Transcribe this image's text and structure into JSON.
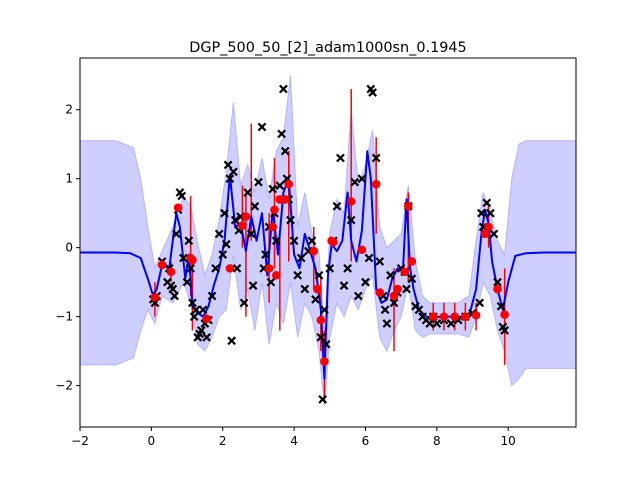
{
  "chart_data": {
    "type": "line",
    "title": "DGP_500_50_[2]_adam1000sn_0.1945",
    "xlabel": "",
    "ylabel": "",
    "xlim": [
      -2,
      11.9
    ],
    "ylim": [
      -2.6,
      2.75
    ],
    "xticks": [
      -2,
      0,
      2,
      4,
      6,
      8,
      10
    ],
    "yticks": [
      -2,
      -1,
      0,
      1,
      2
    ],
    "grid": false,
    "legend": "none",
    "colors": {
      "mean": "#0000ff",
      "band": "#ccccff",
      "band_edge": "#b3b3ff",
      "observations": "#000000",
      "predictions": "#ff0000",
      "error_bars": "#ff0000"
    },
    "mean_curve": {
      "x": [
        -2,
        -1.5,
        -1.0,
        -0.6,
        -0.3,
        -0.1,
        0.05,
        0.15,
        0.3,
        0.5,
        0.7,
        0.8,
        0.95,
        1.05,
        1.15,
        1.3,
        1.45,
        1.6,
        1.75,
        1.9,
        2.05,
        2.2,
        2.35,
        2.5,
        2.65,
        2.8,
        2.95,
        3.1,
        3.25,
        3.4,
        3.55,
        3.7,
        3.85,
        4.0,
        4.15,
        4.3,
        4.45,
        4.6,
        4.75,
        4.85,
        4.95,
        5.05,
        5.2,
        5.35,
        5.5,
        5.6,
        5.75,
        5.9,
        6.05,
        6.15,
        6.3,
        6.45,
        6.6,
        6.75,
        6.9,
        7.05,
        7.15,
        7.25,
        7.35,
        7.5,
        7.7,
        7.9,
        8.1,
        8.3,
        8.5,
        8.7,
        8.9,
        9.1,
        9.25,
        9.35,
        9.45,
        9.55,
        9.7,
        9.85,
        10.0,
        10.2,
        10.5,
        11.0,
        11.9
      ],
      "y": [
        -0.07,
        -0.07,
        -0.07,
        -0.08,
        -0.15,
        -0.45,
        -0.7,
        -0.6,
        -0.25,
        -0.3,
        0.5,
        0.3,
        -0.45,
        -0.1,
        -0.85,
        -0.95,
        -1.0,
        -0.85,
        -0.55,
        -0.3,
        0.1,
        1.05,
        0.3,
        0.35,
        -0.05,
        0.45,
        0.1,
        0.5,
        -0.4,
        0.55,
        -0.1,
        0.8,
        1.0,
        -0.1,
        -0.3,
        0.2,
        -0.05,
        -0.3,
        -0.9,
        -1.9,
        -0.4,
        0.05,
        -0.05,
        0.1,
        0.8,
        0.1,
        -0.2,
        0.25,
        1.4,
        1.0,
        -0.6,
        -0.8,
        -0.75,
        -0.45,
        -0.3,
        -0.35,
        0.7,
        -0.3,
        -0.6,
        -0.9,
        -1.0,
        -1.02,
        -1.0,
        -1.0,
        -1.0,
        -1.0,
        -1.0,
        -0.6,
        0.2,
        0.55,
        0.35,
        -0.2,
        -0.6,
        -0.9,
        -0.5,
        -0.12,
        -0.08,
        -0.07,
        -0.07
      ]
    },
    "band_upper": {
      "x": [
        -2,
        -1.0,
        -0.5,
        -0.3,
        -0.1,
        0.1,
        0.3,
        0.6,
        0.9,
        1.1,
        1.3,
        1.5,
        1.7,
        1.9,
        2.1,
        2.3,
        2.5,
        2.7,
        2.9,
        3.1,
        3.3,
        3.5,
        3.7,
        3.9,
        4.1,
        4.3,
        4.5,
        4.7,
        4.85,
        5.0,
        5.2,
        5.4,
        5.6,
        5.8,
        6.0,
        6.2,
        6.4,
        6.6,
        6.8,
        7.0,
        7.2,
        7.4,
        7.6,
        7.8,
        8.0,
        8.3,
        8.6,
        8.9,
        9.1,
        9.3,
        9.5,
        9.7,
        9.9,
        10.1,
        10.3,
        10.5,
        11.0,
        11.9
      ],
      "y": [
        1.55,
        1.55,
        1.45,
        1.0,
        0.3,
        -0.3,
        -0.05,
        0.3,
        0.75,
        0.6,
        0.05,
        -0.4,
        -0.1,
        0.4,
        1.1,
        2.1,
        0.9,
        1.2,
        0.8,
        1.3,
        0.7,
        1.4,
        1.6,
        2.5,
        0.3,
        0.8,
        0.2,
        -0.1,
        -1.2,
        0.2,
        0.7,
        0.5,
        2.0,
        0.9,
        1.2,
        1.7,
        0.3,
        0.0,
        0.1,
        0.2,
        0.9,
        -0.2,
        -0.7,
        -0.8,
        -0.8,
        -0.8,
        -0.8,
        -0.7,
        0.1,
        0.8,
        0.5,
        0.1,
        -0.1,
        1.0,
        1.5,
        1.55,
        1.55,
        1.55
      ]
    },
    "band_lower": {
      "x": [
        -2,
        -1.0,
        -0.5,
        -0.3,
        -0.1,
        0.1,
        0.3,
        0.6,
        0.9,
        1.1,
        1.3,
        1.5,
        1.7,
        1.9,
        2.1,
        2.3,
        2.5,
        2.7,
        2.9,
        3.1,
        3.3,
        3.5,
        3.7,
        3.9,
        4.1,
        4.3,
        4.5,
        4.7,
        4.85,
        5.0,
        5.2,
        5.4,
        5.6,
        5.8,
        6.0,
        6.2,
        6.4,
        6.6,
        6.8,
        7.0,
        7.2,
        7.4,
        7.6,
        7.8,
        8.0,
        8.3,
        8.6,
        8.9,
        9.1,
        9.3,
        9.5,
        9.7,
        9.9,
        10.1,
        10.3,
        10.5,
        11.0,
        11.9
      ],
      "y": [
        -1.7,
        -1.7,
        -1.6,
        -1.2,
        -0.9,
        -1.1,
        -0.7,
        -0.8,
        -0.5,
        -0.8,
        -1.4,
        -1.5,
        -1.3,
        -1.0,
        -0.9,
        -0.1,
        -0.9,
        -0.6,
        -1.2,
        -0.5,
        -1.4,
        -0.8,
        -1.1,
        -0.5,
        -1.3,
        -0.8,
        -1.0,
        -1.5,
        -2.3,
        -1.3,
        -0.8,
        -1.0,
        -0.7,
        -0.9,
        -0.6,
        -0.4,
        -1.3,
        -1.5,
        -1.2,
        -1.0,
        -0.5,
        -1.2,
        -1.3,
        -1.25,
        -1.25,
        -1.25,
        -1.25,
        -1.3,
        -1.0,
        -0.5,
        -0.7,
        -1.2,
        -1.5,
        -2.0,
        -1.9,
        -1.75,
        -1.75,
        -1.75
      ]
    },
    "observations": {
      "x": [
        0.05,
        0.1,
        0.15,
        0.3,
        0.45,
        0.5,
        0.55,
        0.6,
        0.65,
        0.7,
        0.75,
        0.8,
        0.85,
        0.9,
        1.0,
        1.05,
        1.1,
        1.15,
        1.2,
        1.25,
        1.3,
        1.35,
        1.4,
        1.45,
        1.5,
        1.55,
        1.6,
        1.7,
        1.8,
        1.9,
        2.0,
        2.05,
        2.1,
        2.15,
        2.2,
        2.25,
        2.3,
        2.35,
        2.4,
        2.45,
        2.5,
        2.6,
        2.7,
        2.8,
        2.85,
        2.9,
        3.0,
        3.1,
        3.15,
        3.2,
        3.3,
        3.35,
        3.4,
        3.45,
        3.5,
        3.6,
        3.65,
        3.7,
        3.75,
        3.8,
        3.85,
        3.9,
        4.0,
        4.1,
        4.2,
        4.3,
        4.4,
        4.5,
        4.6,
        4.7,
        4.75,
        4.8,
        4.85,
        4.9,
        5.0,
        5.1,
        5.2,
        5.3,
        5.4,
        5.5,
        5.6,
        5.7,
        5.8,
        5.9,
        6.0,
        6.1,
        6.15,
        6.2,
        6.3,
        6.4,
        6.5,
        6.55,
        6.6,
        6.7,
        6.8,
        6.9,
        7.0,
        7.1,
        7.15,
        7.2,
        7.3,
        7.4,
        7.5,
        7.6,
        7.7,
        7.8,
        7.9,
        8.0,
        8.2,
        8.4,
        8.6,
        8.8,
        9.0,
        9.2,
        9.25,
        9.3,
        9.4,
        9.5,
        9.6,
        9.7,
        9.8,
        9.85,
        9.9
      ],
      "y": [
        -0.75,
        -0.8,
        -0.7,
        -0.2,
        -0.5,
        -0.3,
        -0.55,
        -0.6,
        -0.7,
        0.2,
        0.55,
        0.8,
        0.75,
        -0.15,
        -0.5,
        0.1,
        -0.3,
        -0.8,
        -1.0,
        -0.9,
        -1.3,
        -1.25,
        -1.2,
        -0.9,
        -1.1,
        -1.3,
        -1.05,
        -0.7,
        -0.3,
        0.2,
        -0.1,
        0.5,
        0.05,
        1.2,
        1.0,
        -1.35,
        1.1,
        0.4,
        -0.3,
        0.25,
        0.45,
        -0.8,
        0.8,
        0.2,
        -0.55,
        0.6,
        0.95,
        1.75,
        -0.3,
        -0.1,
        0.3,
        -0.5,
        0.85,
        0.5,
        0.1,
        0.9,
        1.65,
        2.3,
        1.4,
        1.0,
        0.7,
        0.4,
        0.1,
        -0.4,
        -0.15,
        -0.6,
        -0.05,
        0.1,
        -0.75,
        -0.4,
        -1.3,
        -2.2,
        -0.9,
        -1.4,
        -0.3,
        0.1,
        0.6,
        1.3,
        -0.55,
        -0.3,
        0.4,
        0.95,
        -0.7,
        1.0,
        -0.5,
        -0.15,
        2.3,
        2.25,
        1.3,
        -0.2,
        -0.7,
        -0.9,
        -1.1,
        -0.4,
        -0.8,
        -0.65,
        -0.3,
        -0.35,
        -0.6,
        0.6,
        -0.45,
        -0.85,
        -0.9,
        -1.0,
        -1.05,
        -1.1,
        -1.0,
        -1.1,
        -1.05,
        -1.1,
        -1.05,
        -1.0,
        -0.95,
        -0.8,
        0.5,
        0.3,
        0.65,
        0.5,
        0.2,
        -0.5,
        -0.85,
        -1.15,
        -1.2
      ],
      "marker": "x"
    },
    "predictions": {
      "x": [
        0.1,
        0.3,
        0.55,
        0.75,
        1.1,
        1.15,
        1.55,
        2.2,
        2.55,
        2.65,
        3.3,
        3.4,
        3.45,
        3.5,
        3.6,
        3.75,
        3.85,
        4.55,
        4.65,
        4.75,
        4.85,
        5.05,
        5.1,
        5.6,
        5.9,
        6.3,
        6.4,
        6.8,
        6.9,
        7.1,
        7.2,
        7.3,
        7.9,
        8.2,
        8.5,
        8.8,
        9.1,
        9.35,
        9.45,
        9.7,
        9.9
      ],
      "y": [
        -0.72,
        -0.25,
        -0.35,
        0.58,
        -0.15,
        -0.18,
        -1.03,
        -0.3,
        0.32,
        0.45,
        -0.3,
        0.3,
        0.55,
        -0.4,
        0.7,
        0.7,
        0.92,
        -0.05,
        -0.6,
        -1.05,
        -1.65,
        0.1,
        0.08,
        0.67,
        -0.03,
        0.92,
        -0.65,
        -0.7,
        -0.6,
        -0.35,
        0.6,
        -0.2,
        -1.0,
        -1.0,
        -1.0,
        -1.0,
        -0.98,
        0.2,
        0.3,
        -0.6,
        -0.97
      ],
      "marker": "o"
    },
    "error_bars": [
      {
        "x": 0.1,
        "y_low": -1.0,
        "y_high": -0.5
      },
      {
        "x": 0.55,
        "y_low": -0.5,
        "y_high": -0.2
      },
      {
        "x": 1.1,
        "y_low": -0.7,
        "y_high": 0.75
      },
      {
        "x": 1.15,
        "y_low": -1.2,
        "y_high": -0.1
      },
      {
        "x": 2.55,
        "y_low": 0.0,
        "y_high": 0.9
      },
      {
        "x": 2.65,
        "y_low": -1.0,
        "y_high": 0.8
      },
      {
        "x": 2.8,
        "y_low": 0.1,
        "y_high": 1.8
      },
      {
        "x": 3.3,
        "y_low": -0.8,
        "y_high": 0.5
      },
      {
        "x": 3.45,
        "y_low": -0.3,
        "y_high": 1.3
      },
      {
        "x": 3.6,
        "y_low": -1.2,
        "y_high": 0.2
      },
      {
        "x": 3.85,
        "y_low": -0.2,
        "y_high": 1.4
      },
      {
        "x": 4.55,
        "y_low": -0.6,
        "y_high": 0.3
      },
      {
        "x": 4.75,
        "y_low": -1.5,
        "y_high": -0.4
      },
      {
        "x": 4.85,
        "y_low": -2.2,
        "y_high": -1.2
      },
      {
        "x": 5.6,
        "y_low": -0.2,
        "y_high": 2.3
      },
      {
        "x": 6.3,
        "y_low": 0.2,
        "y_high": 1.6
      },
      {
        "x": 6.8,
        "y_low": -1.5,
        "y_high": -0.3
      },
      {
        "x": 7.2,
        "y_low": -0.5,
        "y_high": 0.8
      },
      {
        "x": 7.9,
        "y_low": -1.2,
        "y_high": -0.8
      },
      {
        "x": 8.2,
        "y_low": -1.2,
        "y_high": -0.8
      },
      {
        "x": 8.5,
        "y_low": -1.2,
        "y_high": -0.8
      },
      {
        "x": 8.8,
        "y_low": -1.2,
        "y_high": -0.8
      },
      {
        "x": 9.1,
        "y_low": -1.2,
        "y_high": -0.8
      },
      {
        "x": 9.45,
        "y_low": 0.0,
        "y_high": 0.6
      },
      {
        "x": 9.9,
        "y_low": -1.7,
        "y_high": -0.3
      }
    ]
  }
}
